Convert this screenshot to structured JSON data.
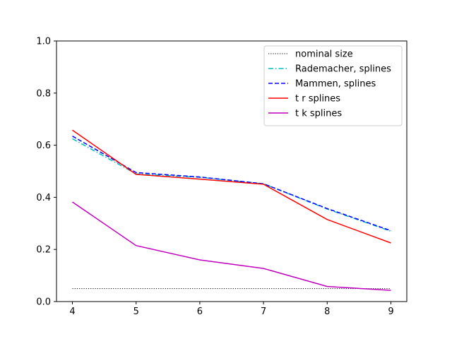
{
  "chart_data": {
    "type": "line",
    "x": [
      4,
      5,
      6,
      7,
      8,
      9
    ],
    "xlim": [
      3.75,
      9.25
    ],
    "ylim": [
      0,
      1
    ],
    "xticks": [
      4,
      5,
      6,
      7,
      8,
      9
    ],
    "yticks": [
      0.0,
      0.2,
      0.4,
      0.6,
      0.8,
      1.0
    ],
    "ytick_labels": [
      "0.0",
      "0.2",
      "0.4",
      "0.6",
      "0.8",
      "1.0"
    ],
    "grid": false,
    "legend_position": "top-right",
    "title": "",
    "xlabel": "",
    "ylabel": "",
    "series": [
      {
        "name": "nominal size",
        "values": [
          0.05,
          0.05,
          0.05,
          0.05,
          0.05,
          0.05
        ],
        "color": "#000000",
        "dash": "dotted"
      },
      {
        "name": "Rademacher, splines",
        "values": [
          0.625,
          0.49,
          0.477,
          0.452,
          0.355,
          0.27
        ],
        "color": "#00bfbf",
        "dash": "dashdot"
      },
      {
        "name": "Mammen, splines",
        "values": [
          0.635,
          0.495,
          0.478,
          0.452,
          0.357,
          0.272
        ],
        "color": "#0000ff",
        "dash": "dashed"
      },
      {
        "name": "t r splines",
        "values": [
          0.658,
          0.488,
          0.47,
          0.45,
          0.315,
          0.225
        ],
        "color": "#ff0000",
        "dash": "solid"
      },
      {
        "name": "t k splines",
        "values": [
          0.382,
          0.215,
          0.16,
          0.127,
          0.058,
          0.043
        ],
        "color": "#bf00bf",
        "dash": "solid"
      }
    ]
  }
}
